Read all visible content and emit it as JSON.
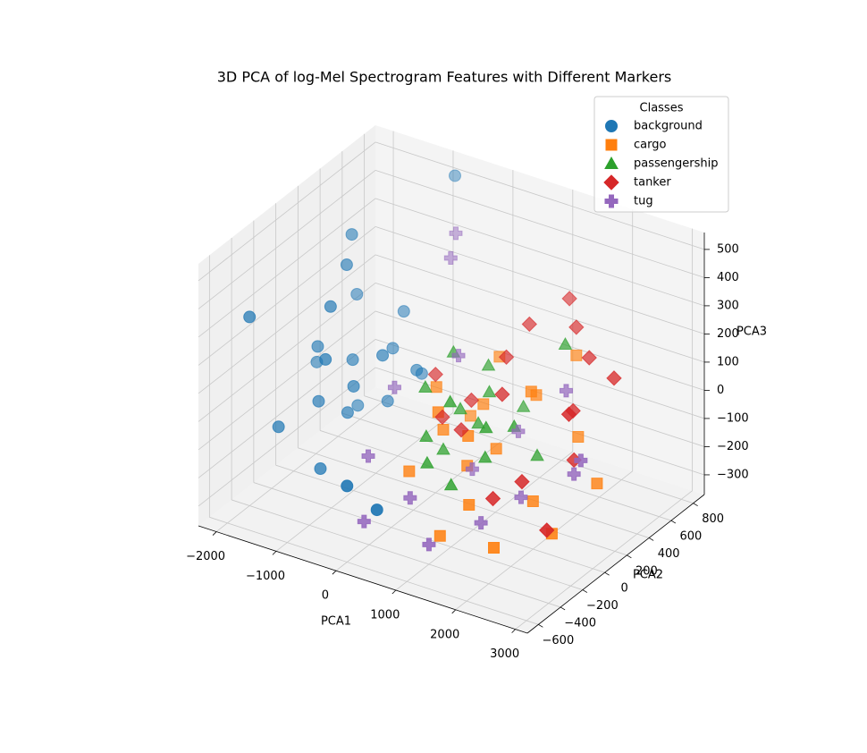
{
  "chart_data": {
    "type": "scatter3d",
    "title": "3D PCA of log-Mel Spectrogram Features with Different Markers",
    "xlabel": "PCA1",
    "ylabel": "PCA2",
    "zlabel": "PCA3",
    "legend_title": "Classes",
    "legend": "upper right",
    "grid": true,
    "xlim": [
      -2300,
      3200
    ],
    "ylim": [
      -700,
      900
    ],
    "zlim": [
      -370,
      560
    ],
    "xticks": [
      {
        "value": -2000,
        "label": "−2000"
      },
      {
        "value": -1000,
        "label": "−1000"
      },
      0,
      1000,
      2000,
      3000
    ],
    "yticks": [
      {
        "value": -600,
        "label": "−600"
      },
      {
        "value": -400,
        "label": "−400"
      },
      {
        "value": -200,
        "label": "−200"
      },
      0,
      200,
      400,
      600,
      800
    ],
    "zticks": [
      {
        "value": -300,
        "label": "−300"
      },
      {
        "value": -200,
        "label": "−200"
      },
      {
        "value": -100,
        "label": "−100"
      },
      0,
      100,
      200,
      300,
      400,
      500
    ],
    "series": [
      {
        "name": "background",
        "color": "#1f77b4",
        "marker": "circle",
        "x": [
          -1000,
          -1200,
          -1400,
          -800,
          -1600,
          -1100,
          -900,
          -1300,
          -1700,
          -700,
          -1500,
          -1000,
          -1800,
          -600,
          -1200,
          -2000,
          -1400,
          -1300,
          -600,
          0,
          500,
          -900,
          -1100,
          -500
        ],
        "y": [
          0,
          100,
          -100,
          200,
          0,
          -200,
          300,
          200,
          -300,
          100,
          300,
          -300,
          100,
          400,
          -100,
          -400,
          200,
          100,
          700,
          -600,
          -600,
          400,
          0,
          300
        ],
        "z": [
          0,
          50,
          -50,
          -100,
          100,
          150,
          50,
          -150,
          -100,
          100,
          200,
          -200,
          0,
          -50,
          300,
          300,
          450,
          380,
          560,
          -100,
          -150,
          150,
          -100,
          0
        ]
      },
      {
        "name": "cargo",
        "color": "#ff7f0e",
        "marker": "square",
        "x": [
          500,
          800,
          1200,
          300,
          1500,
          2000,
          2500,
          1000,
          700,
          1800,
          200,
          1300,
          2200,
          900,
          400,
          1600,
          2700,
          1100,
          600,
          1900
        ],
        "y": [
          0,
          200,
          100,
          -200,
          300,
          0,
          -100,
          -300,
          400,
          500,
          100,
          -200,
          300,
          0,
          300,
          200,
          200,
          -100,
          -100,
          -300
        ],
        "z": [
          -50,
          0,
          -100,
          -150,
          50,
          -200,
          -250,
          -300,
          100,
          150,
          50,
          -200,
          -50,
          -150,
          -100,
          100,
          -150,
          0,
          50,
          -280
        ]
      },
      {
        "name": "passengership",
        "color": "#2ca02c",
        "marker": "triangle",
        "x": [
          1800,
          600,
          900,
          400,
          1200,
          700,
          1000,
          300,
          1500,
          800,
          1100,
          500,
          1400,
          200,
          1700,
          900,
          600
        ],
        "y": [
          400,
          100,
          200,
          -100,
          0,
          300,
          -200,
          200,
          100,
          -100,
          400,
          0,
          -100,
          0,
          200,
          100,
          -200
        ],
        "z": [
          220,
          0,
          50,
          -50,
          -100,
          100,
          -150,
          150,
          0,
          100,
          -50,
          -120,
          50,
          80,
          -120,
          -30,
          -100
        ]
      },
      {
        "name": "tanker",
        "color": "#d62728",
        "marker": "diamond",
        "x": [
          1500,
          1800,
          2200,
          2800,
          2500,
          1000,
          600,
          300,
          1300,
          2000,
          2600,
          1700,
          800,
          0,
          1200,
          2300,
          2600
        ],
        "y": [
          600,
          500,
          400,
          300,
          100,
          300,
          200,
          100,
          100,
          -100,
          -200,
          -200,
          0,
          200,
          400,
          200,
          0
        ],
        "z": [
          300,
          250,
          200,
          200,
          -50,
          150,
          0,
          -50,
          100,
          -100,
          -200,
          -150,
          -30,
          50,
          250,
          80,
          150
        ]
      },
      {
        "name": "tug",
        "color": "#9467bd",
        "marker": "plus",
        "x": [
          -400,
          -300,
          200,
          500,
          1000,
          1500,
          2500,
          2800,
          -200,
          800,
          1200,
          -500,
          100,
          1800,
          2000
        ],
        "y": [
          600,
          500,
          300,
          -300,
          -400,
          -200,
          100,
          0,
          -300,
          100,
          300,
          100,
          -500,
          0,
          300
        ],
        "z": [
          400,
          350,
          100,
          -200,
          -300,
          -250,
          -100,
          0,
          -100,
          -200,
          -100,
          0,
          -250,
          -200,
          100
        ]
      }
    ]
  }
}
